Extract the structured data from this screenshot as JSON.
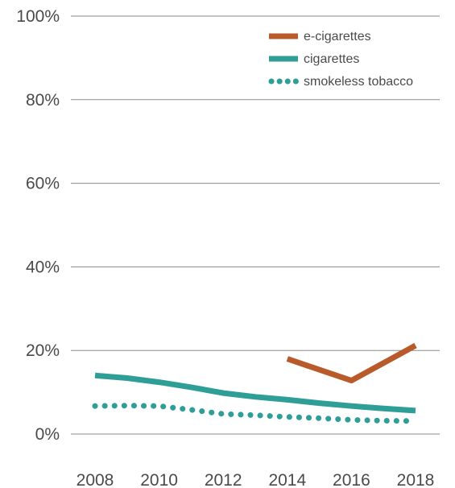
{
  "chart_data": {
    "type": "line",
    "x": [
      2008,
      2009,
      2010,
      2011,
      2012,
      2013,
      2014,
      2015,
      2016,
      2017,
      2018
    ],
    "xticks": [
      "2008",
      "2010",
      "2012",
      "2014",
      "2016",
      "2018"
    ],
    "yticks": [
      "0%",
      "20%",
      "40%",
      "60%",
      "80%",
      "100%"
    ],
    "ylim": [
      0,
      100
    ],
    "xlim": [
      2008,
      2018
    ],
    "grid": true,
    "legend_position": "top-right",
    "series": [
      {
        "name": "e-cigarettes",
        "color": "#b85a2a",
        "style": "solid",
        "x": [
          2014,
          2016,
          2018
        ],
        "values": [
          18,
          12.8,
          21.2
        ]
      },
      {
        "name": "cigarettes",
        "color": "#2f9e96",
        "style": "solid",
        "x": [
          2008,
          2009,
          2010,
          2011,
          2012,
          2013,
          2014,
          2015,
          2016,
          2017,
          2018
        ],
        "values": [
          14,
          13.4,
          12.4,
          11.2,
          9.8,
          8.9,
          8.2,
          7.4,
          6.7,
          6.1,
          5.6
        ]
      },
      {
        "name": "smokeless tobacco",
        "color": "#2f9e96",
        "style": "dotted",
        "x": [
          2008,
          2009,
          2010,
          2011,
          2012,
          2013,
          2014,
          2015,
          2016,
          2017,
          2018
        ],
        "values": [
          6.7,
          6.8,
          6.7,
          5.8,
          4.8,
          4.5,
          4.1,
          3.8,
          3.4,
          3.2,
          3.1
        ]
      }
    ]
  }
}
